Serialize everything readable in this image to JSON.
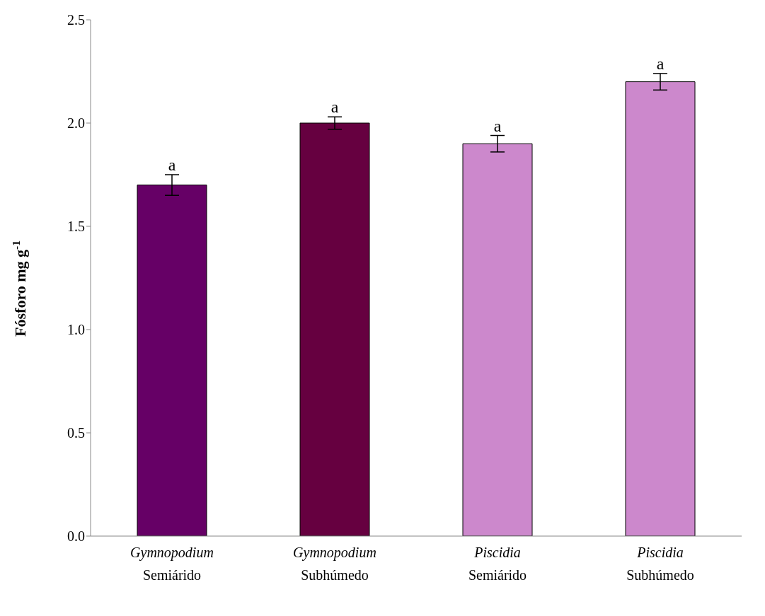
{
  "chart_data": {
    "type": "bar",
    "ylabel": "Fósforo mg g$^{-1}$",
    "categories": [
      "Gymnopodium Semiárido",
      "Gymnopodium Subhúmedo",
      "Piscidia Semiárido",
      "Piscidia Subhúmedo"
    ],
    "values": [
      1.7,
      2.0,
      1.9,
      2.2
    ],
    "errors": [
      0.05,
      0.03,
      0.04,
      0.04
    ],
    "colors": [
      "#660066",
      "#660040",
      "#cc88cc",
      "#cc88cc"
    ],
    "ylim": [
      0,
      2.5
    ],
    "yticks": [
      {
        "value": 0,
        "label": "0.0"
      },
      {
        "value": 0.5,
        "label": "0.5"
      },
      {
        "value": 1,
        "label": "1.0"
      },
      {
        "value": 1.5,
        "label": "1.5"
      },
      {
        "value": 2,
        "label": "2.0"
      },
      {
        "value": 2.5,
        "label": "2.5"
      }
    ],
    "grid": false,
    "legend": false,
    "annotations": [
      {
        "text": "a",
        "x": "Gymnopodium Semiárido",
        "y": 1.75
      },
      {
        "text": "a",
        "x": "Gymnopodium Subhúmedo",
        "y": 2.03
      },
      {
        "text": "a",
        "x": "Piscidia Semiárido",
        "y": 1.94
      },
      {
        "text": "a",
        "x": "Piscidia Subhúmedo",
        "y": 2.24
      }
    ]
  }
}
